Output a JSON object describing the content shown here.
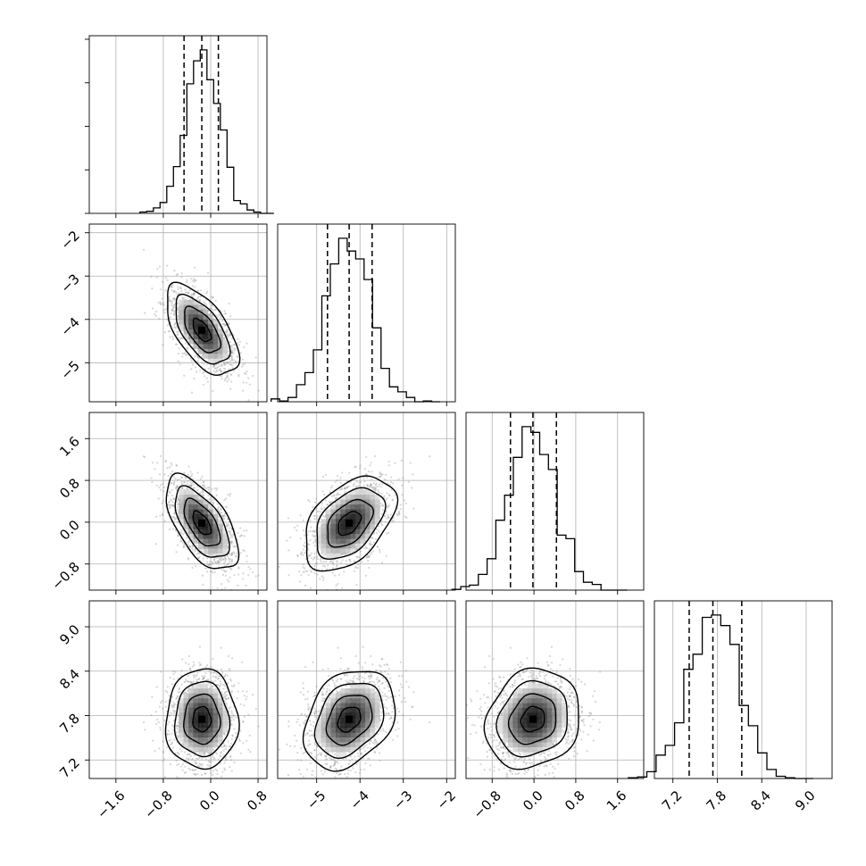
{
  "chart_data": {
    "type": "corner",
    "n_params": 4,
    "params": [
      {
        "range": [
          -2.05,
          0.95
        ],
        "ticks": [
          "−1.6",
          "−0.8",
          "0.0",
          "0.8"
        ],
        "tick_values": [
          -1.6,
          -0.8,
          0.0,
          0.8
        ],
        "mean": -0.15,
        "sd": 0.29,
        "quantiles": [
          -0.45,
          -0.15,
          0.13
        ]
      },
      {
        "range": [
          -5.9,
          -1.8
        ],
        "ticks": [
          "−5",
          "−4",
          "−3",
          "−2"
        ],
        "tick_values": [
          -5,
          -4,
          -3,
          -2
        ],
        "mean": -4.25,
        "sd": 0.5,
        "quantiles": [
          -4.75,
          -4.25,
          -3.72
        ]
      },
      {
        "range": [
          -1.3,
          2.1
        ],
        "ticks": [
          "−0.8",
          "0.0",
          "0.8",
          "1.6"
        ],
        "tick_values": [
          -0.8,
          0.0,
          0.8,
          1.6
        ],
        "mean": -0.02,
        "sd": 0.43,
        "quantiles": [
          -0.45,
          -0.02,
          0.43
        ]
      },
      {
        "range": [
          6.95,
          9.35
        ],
        "ticks": [
          "7.2",
          "7.8",
          "8.4",
          "9.0"
        ],
        "tick_values": [
          7.2,
          7.8,
          8.4,
          9.0
        ],
        "mean": 7.75,
        "sd": 0.32,
        "quantiles": [
          7.42,
          7.74,
          8.13
        ]
      }
    ],
    "correlations": [
      {
        "pair": [
          0,
          1
        ],
        "rho": -0.6
      },
      {
        "pair": [
          0,
          2
        ],
        "rho": -0.6
      },
      {
        "pair": [
          1,
          2
        ],
        "rho": 0.45
      },
      {
        "pair": [
          0,
          3
        ],
        "rho": 0.0
      },
      {
        "pair": [
          1,
          3
        ],
        "rho": 0.3
      },
      {
        "pair": [
          2,
          3
        ],
        "rho": 0.15
      }
    ],
    "histogram_bins": 20,
    "scatter_points": 1500,
    "contour_levels_sigma": [
      0.5,
      1.0,
      1.5,
      2.0
    ],
    "grid": true,
    "xlabels": [
      "",
      "",
      "",
      ""
    ],
    "ylabels": [
      "",
      "",
      "",
      ""
    ],
    "title": ""
  },
  "colors": {
    "background": "#ffffff",
    "axes": "#000000",
    "grid": "#b0b0b0",
    "scatter": "#8c8c8c",
    "density_dark": "#000000"
  }
}
